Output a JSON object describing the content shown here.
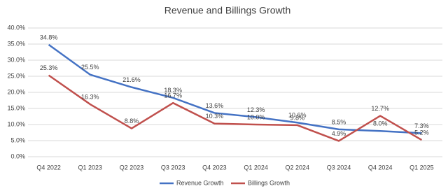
{
  "chart_data": {
    "type": "line",
    "title": "Revenue and Billings Growth",
    "categories": [
      "Q4 2022",
      "Q1 2023",
      "Q2 2023",
      "Q3 2023",
      "Q4 2023",
      "Q1 2024",
      "Q2 2024",
      "Q3 2024",
      "Q4 2024",
      "Q1 2025"
    ],
    "series": [
      {
        "name": "Revenue Growth",
        "color": "#4472c4",
        "values": [
          34.8,
          25.5,
          21.6,
          18.3,
          13.6,
          12.3,
          10.6,
          8.5,
          8.0,
          7.3
        ],
        "value_labels": [
          "34.8%",
          "25.5%",
          "21.6%",
          "18.3%",
          "13.6%",
          "12.3%",
          "10.6%",
          "8.5%",
          "8.0%",
          "7.3%"
        ]
      },
      {
        "name": "Billings Growth",
        "color": "#c0504d",
        "values": [
          25.3,
          16.3,
          8.8,
          16.7,
          10.3,
          10.0,
          9.8,
          4.9,
          12.7,
          5.2
        ],
        "value_labels": [
          "25.3%",
          "16.3%",
          "8.8%",
          "16.7%",
          "10.3%",
          "10.0%",
          "9.8%",
          "4.9%",
          "12.7%",
          "5.2%"
        ]
      }
    ],
    "ylim": [
      0,
      40
    ],
    "yticks": [
      {
        "value": 0,
        "label": "0.0%"
      },
      {
        "value": 5,
        "label": "5.0%"
      },
      {
        "value": 10,
        "label": "10.0%"
      },
      {
        "value": 15,
        "label": "15.0%"
      },
      {
        "value": 20,
        "label": "20.0%"
      },
      {
        "value": 25,
        "label": "25.0%"
      },
      {
        "value": 30,
        "label": "30.0%"
      },
      {
        "value": 35,
        "label": "35.0%"
      },
      {
        "value": 40,
        "label": "40.0%"
      }
    ],
    "grid": true,
    "legend": "bottom"
  }
}
